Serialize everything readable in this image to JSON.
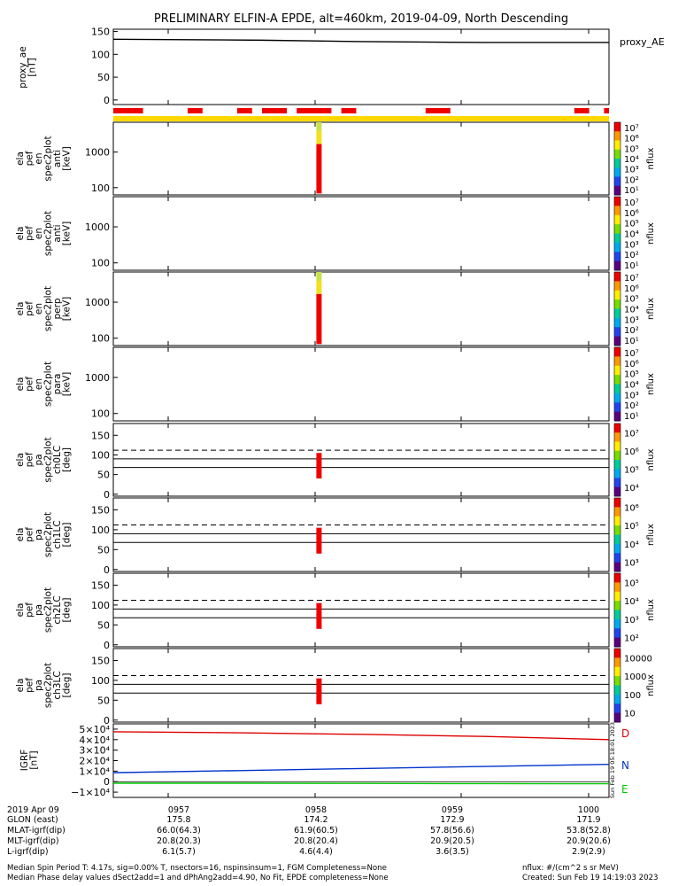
{
  "title": "PRELIMINARY ELFIN-A EPDE, alt=460km, 2019-04-09, North Descending",
  "panels": {
    "proxy_ae": {
      "ylabel": [
        "proxy_ae",
        "[nT]"
      ],
      "yticks": [
        "150",
        "100",
        "50",
        "0"
      ],
      "legend": "proxy_AE"
    },
    "en_anti": {
      "ylabel": [
        "ela",
        "pef",
        "en",
        "spec2plot",
        "anti",
        "[keV]"
      ],
      "yticks": [
        "1000",
        "100"
      ],
      "cbar_label": "nflux",
      "cbar_ticks": [
        "10⁷",
        "10⁶",
        "10⁵",
        "10⁴",
        "10³",
        "10²",
        "10¹"
      ]
    },
    "en_antia": {
      "ylabel": [
        "ela",
        "pef",
        "en",
        "spec2plot",
        "anti",
        "[keV]"
      ],
      "yticks": [
        "1000",
        "100"
      ],
      "cbar_label": "nflux",
      "cbar_ticks": [
        "10⁷",
        "10⁶",
        "10⁵",
        "10⁴",
        "10³",
        "10²",
        "10¹"
      ]
    },
    "en_perp": {
      "ylabel": [
        "ela",
        "pef",
        "en",
        "spec2plot",
        "perp",
        "[keV]"
      ],
      "yticks": [
        "1000",
        "100"
      ],
      "cbar_label": "nflux",
      "cbar_ticks": [
        "10⁷",
        "10⁶",
        "10⁵",
        "10⁴",
        "10³",
        "10²",
        "10¹"
      ]
    },
    "en_para": {
      "ylabel": [
        "ela",
        "pef",
        "en",
        "spec2plot",
        "para",
        "[keV]"
      ],
      "yticks": [
        "1000",
        "100"
      ],
      "cbar_label": "nflux",
      "cbar_ticks": [
        "10⁷",
        "10⁶",
        "10⁵",
        "10⁴",
        "10³",
        "10²",
        "10¹"
      ]
    },
    "pa_ch0": {
      "ylabel": [
        "ela",
        "pef",
        "pa",
        "spec2plot",
        "ch0LC",
        "[deg]"
      ],
      "yticks": [
        "150",
        "100",
        "50",
        "0"
      ],
      "cbar_label": "nflux",
      "cbar_ticks": [
        "10⁷",
        "10⁶",
        "10⁵",
        "10⁴"
      ]
    },
    "pa_ch1": {
      "ylabel": [
        "ela",
        "pef",
        "pa",
        "spec2plot",
        "ch1LC",
        "[deg]"
      ],
      "yticks": [
        "150",
        "100",
        "50",
        "0"
      ],
      "cbar_label": "nflux",
      "cbar_ticks": [
        "10⁶",
        "10⁵",
        "10⁴",
        "10³"
      ]
    },
    "pa_ch2": {
      "ylabel": [
        "ela",
        "pef",
        "pa",
        "spec2plot",
        "ch2LC",
        "[deg]"
      ],
      "yticks": [
        "150",
        "100",
        "50",
        "0"
      ],
      "cbar_label": "nflux",
      "cbar_ticks": [
        "10⁵",
        "10⁴",
        "10³",
        "10²"
      ]
    },
    "pa_ch3": {
      "ylabel": [
        "ela",
        "pef",
        "pa",
        "spec2plot",
        "ch3LC",
        "[deg]"
      ],
      "yticks": [
        "150",
        "100",
        "50",
        "0"
      ],
      "cbar_label": "nflux",
      "cbar_ticks": [
        "10000",
        "1000",
        "100",
        "10"
      ]
    },
    "igrf": {
      "ylabel": [
        "IGRF",
        "[nT]"
      ],
      "yticks": [
        "5×10⁴",
        "4×10⁴",
        "3×10⁴",
        "2×10⁴",
        "1×10⁴",
        "0",
        "−1×10⁴"
      ],
      "legend": [
        "D",
        "N",
        "E"
      ],
      "stamp": "Sun Feb 19 05:18:01 2023"
    }
  },
  "colors": {
    "flag_red": "#ee0000",
    "flag_yellow": "#ffd800",
    "dline": "#dd0000",
    "nline": "#0033cc",
    "eline": "#00cc00",
    "spike_green": "#c9e04a",
    "spike_yellow": "#f4e020"
  },
  "chart_data": {
    "type": "line",
    "x_ticks": [
      "0957",
      "0958",
      "0959",
      "1000"
    ],
    "proxy_ae": {
      "ylim": [
        -10,
        155
      ],
      "x": [
        0,
        0.3,
        0.5,
        0.75,
        1
      ],
      "values": [
        133,
        131,
        128,
        126,
        126
      ]
    },
    "flags": {
      "red_segments": [
        [
          0.0,
          0.06
        ],
        [
          0.15,
          0.18
        ],
        [
          0.25,
          0.28
        ],
        [
          0.3,
          0.35
        ],
        [
          0.37,
          0.44
        ],
        [
          0.46,
          0.49
        ],
        [
          0.63,
          0.68
        ],
        [
          0.93,
          0.96
        ],
        [
          0.99,
          1.0
        ]
      ],
      "yellow_bar": [
        0.0,
        1.0
      ]
    },
    "spike": {
      "x": 0.415
    },
    "pa_dashed": 112,
    "pa_solid": [
      90,
      68
    ],
    "pa_ylim": [
      -5,
      180
    ],
    "igrf": {
      "ylim": [
        -15000,
        55000
      ],
      "x": [
        0,
        0.25,
        0.5,
        0.75,
        1
      ],
      "D": [
        47500,
        46500,
        45000,
        43000,
        40000
      ],
      "N": [
        8500,
        10500,
        12500,
        14500,
        16500
      ],
      "E": [
        -1500,
        -1500,
        -1700,
        -1900,
        -2000
      ]
    }
  },
  "footer": {
    "rows": [
      {
        "label": "2019 Apr 09",
        "values": [
          "0957",
          "0958",
          "0959",
          "1000"
        ]
      },
      {
        "label": "GLON (east)",
        "values": [
          "175.8",
          "174.2",
          "172.9",
          "171.9"
        ]
      },
      {
        "label": "MLAT-igrf(dip)",
        "values": [
          "66.0(64.3)",
          "61.9(60.5)",
          "57.8(56.6)",
          "53.8(52.8)"
        ]
      },
      {
        "label": "MLT-igrf(dip)",
        "values": [
          "20.8(20.3)",
          "20.8(20.4)",
          "20.9(20.5)",
          "20.9(20.6)"
        ]
      },
      {
        "label": "L-igrf(dip)",
        "values": [
          "6.1(5.7)",
          "4.6(4.4)",
          "3.6(3.5)",
          "2.9(2.9)"
        ]
      }
    ],
    "note1": "Median Spin Period T: 4.17s, sig=0.00% T, nsectors=16, nspinsinsum=1, FGM Completeness=None",
    "note2": "Median Phase delay values dSect2add=1 and dPhAng2add=4.90, No Fit, EPDE completeness=None",
    "nflux_units": "nflux: #/(cm^2 s sr MeV)",
    "created": "Created: Sun Feb 19 14:19:03 2023"
  }
}
